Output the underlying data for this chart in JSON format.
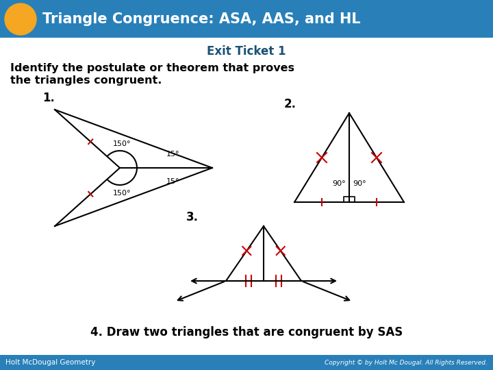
{
  "title": "Triangle Congruence: ASA, AAS, and HL",
  "subtitle": "Exit Ticket 1",
  "header_bg_color": "#2980B9",
  "header_text_color": "#FFFFFF",
  "circle_color": "#F5A623",
  "body_bg_color": "#FFFFFF",
  "body_text_color": "#000000",
  "footer_bg_color": "#2980B9",
  "footer_text_color": "#FFFFFF",
  "footer_left": "Holt McDougal Geometry",
  "footer_right": "Copyright © by Holt Mc Dougal. All Rights Reserved.",
  "instruction_line1": "Identify the postulate or theorem that proves",
  "instruction_line2": "the triangles congruent.",
  "item4": "4. Draw two triangles that are congruent by SAS",
  "red_color": "#CC0000",
  "subtitle_color": "#1A5276"
}
